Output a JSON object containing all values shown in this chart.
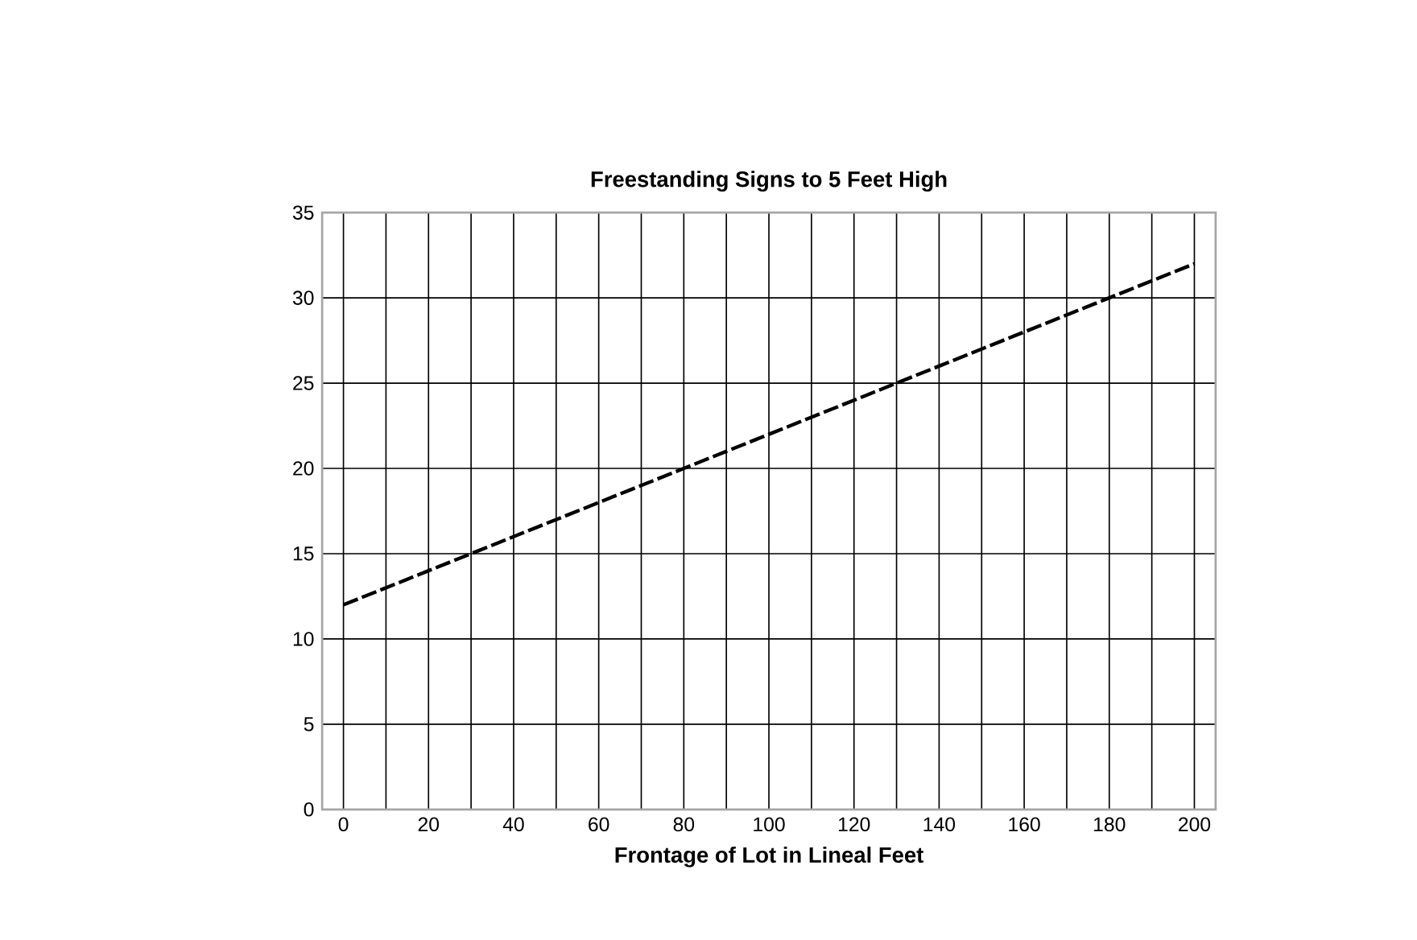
{
  "chart_data": {
    "type": "line",
    "title": "Freestanding Signs to 5 Feet High",
    "xlabel": "Frontage of Lot in Lineal Feet",
    "x": [
      0,
      20,
      40,
      60,
      80,
      100,
      120,
      140,
      160,
      180,
      200
    ],
    "values": [
      12,
      14,
      16,
      18,
      20,
      22,
      24,
      26,
      28,
      30,
      32
    ],
    "color": "#000000",
    "line_style": "dashed",
    "marker": "none",
    "xlim": [
      -5,
      205
    ],
    "xticks": [
      0,
      20,
      40,
      60,
      80,
      100,
      120,
      140,
      160,
      180,
      200
    ],
    "ylim": [
      0,
      35
    ],
    "yticks": [
      0,
      5,
      10,
      15,
      20,
      25,
      30,
      35
    ],
    "grid": true
  }
}
